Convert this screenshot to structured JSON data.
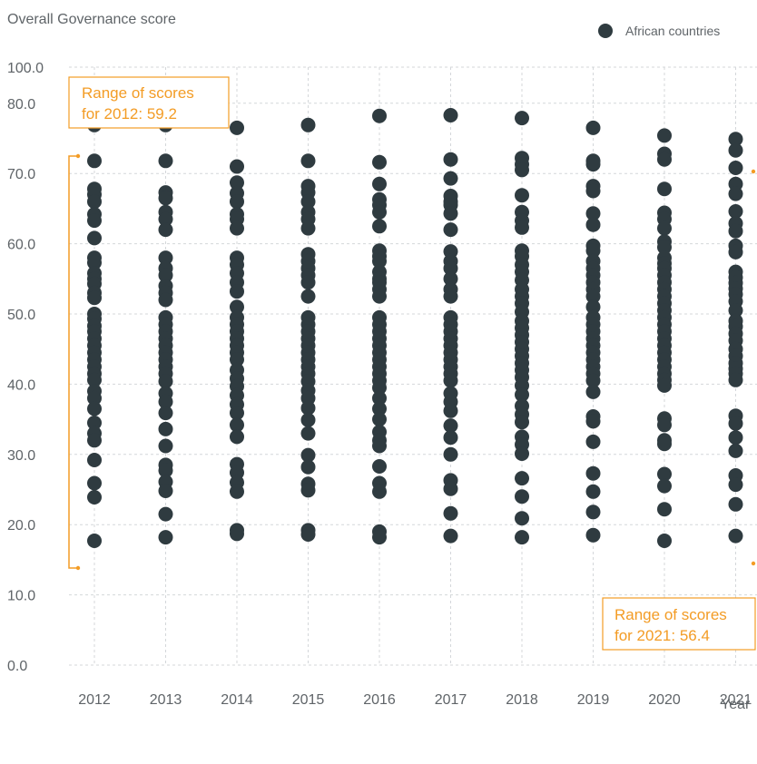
{
  "chart_data": {
    "type": "scatter",
    "ylabel": "Overall Governance score",
    "xlabel": "Year",
    "ylim": [
      0,
      100
    ],
    "y_ticks": [
      "0.0",
      "10.0",
      "20.0",
      "30.0",
      "40.0",
      "50.0",
      "60.0",
      "70.0",
      "80.0",
      "100.0"
    ],
    "y_axis_break": "between 80.0 and 100.0",
    "categories": [
      "2012",
      "2013",
      "2014",
      "2015",
      "2016",
      "2017",
      "2018",
      "2019",
      "2020",
      "2021"
    ],
    "grid": true,
    "legend": {
      "position": "top-right"
    },
    "series": [
      {
        "name": "African countries",
        "color": "#2f3b40",
        "points": [
          {
            "x": "2012",
            "y": [
              76.9,
              71.8,
              67.8,
              67.0,
              66.0,
              64.2,
              63.3,
              60.8,
              58.0,
              57.3,
              55.8,
              55.0,
              54.3,
              53.0,
              52.3,
              50.0,
              49.3,
              48.3,
              47.5,
              46.5,
              45.5,
              44.5,
              43.5,
              42.5,
              41.5,
              40.6,
              39.0,
              38.0,
              36.5,
              34.5,
              33.0,
              32.0,
              29.2,
              25.9,
              23.9,
              17.7
            ]
          },
          {
            "x": "2013",
            "y": [
              76.9,
              71.8,
              67.3,
              66.5,
              64.5,
              63.5,
              62.0,
              58.0,
              56.5,
              55.5,
              54.0,
              53.0,
              52.0,
              49.5,
              48.5,
              47.5,
              46.5,
              45.5,
              44.5,
              43.5,
              42.5,
              41.5,
              40.4,
              38.7,
              37.5,
              35.9,
              33.6,
              31.2,
              28.5,
              27.7,
              26.1,
              24.8,
              21.5,
              18.2
            ]
          },
          {
            "x": "2014",
            "y": [
              76.5,
              71.0,
              68.7,
              67.2,
              66.0,
              64.2,
              63.5,
              62.2,
              58.0,
              57.0,
              55.8,
              54.5,
              53.2,
              51.0,
              49.5,
              48.5,
              47.5,
              46.5,
              45.5,
              44.5,
              43.5,
              42.0,
              40.8,
              39.7,
              38.4,
              37.1,
              35.9,
              34.2,
              32.5,
              28.6,
              27.4,
              26.0,
              24.7,
              19.2,
              18.7
            ]
          },
          {
            "x": "2015",
            "y": [
              76.9,
              71.8,
              68.2,
              67.3,
              66.0,
              64.5,
              63.5,
              62.2,
              58.5,
              57.5,
              56.5,
              55.5,
              54.5,
              52.5,
              49.5,
              48.5,
              47.5,
              46.5,
              45.5,
              44.5,
              43.5,
              42.5,
              41.5,
              40.4,
              39.1,
              38.0,
              36.6,
              34.9,
              33.0,
              29.9,
              28.2,
              25.8,
              24.9,
              19.2,
              18.6
            ]
          },
          {
            "x": "2016",
            "y": [
              78.2,
              71.6,
              68.5,
              66.3,
              65.5,
              64.5,
              62.5,
              59.0,
              58.2,
              57.5,
              56.0,
              55.0,
              54.5,
              53.5,
              52.5,
              49.5,
              48.5,
              47.5,
              46.5,
              45.5,
              44.5,
              43.5,
              42.5,
              41.5,
              40.5,
              39.5,
              38.0,
              36.5,
              35.0,
              33.2,
              32.0,
              31.2,
              28.3,
              25.9,
              24.7,
              19.0,
              18.2
            ]
          },
          {
            "x": "2017",
            "y": [
              78.3,
              72.0,
              69.3,
              66.8,
              66.0,
              65.5,
              64.3,
              62.0,
              58.9,
              57.5,
              56.5,
              55.0,
              53.5,
              52.5,
              49.5,
              48.5,
              47.5,
              46.5,
              45.5,
              44.5,
              43.5,
              42.5,
              41.5,
              40.5,
              38.7,
              37.5,
              36.2,
              34.1,
              32.4,
              30.0,
              26.3,
              25.1,
              21.6,
              18.4
            ]
          },
          {
            "x": "2018",
            "y": [
              77.9,
              72.2,
              71.3,
              70.5,
              66.9,
              64.5,
              63.3,
              62.3,
              59.0,
              58.2,
              57.0,
              56.0,
              54.8,
              53.5,
              52.5,
              51.5,
              50.3,
              49.0,
              48.0,
              47.0,
              46.0,
              45.0,
              44.0,
              43.0,
              42.0,
              41.0,
              39.8,
              38.5,
              36.9,
              35.7,
              34.6,
              32.5,
              31.4,
              30.1,
              26.6,
              24.0,
              20.9,
              18.2
            ]
          },
          {
            "x": "2019",
            "y": [
              76.5,
              71.8,
              71.3,
              68.2,
              67.5,
              64.3,
              62.7,
              59.7,
              59.0,
              57.5,
              56.5,
              55.5,
              54.5,
              53.5,
              52.5,
              51.0,
              49.5,
              48.5,
              47.5,
              46.5,
              45.5,
              44.5,
              43.5,
              42.5,
              41.5,
              40.5,
              38.9,
              35.4,
              34.7,
              31.8,
              27.3,
              24.7,
              21.8,
              18.5
            ]
          },
          {
            "x": "2020",
            "y": [
              75.4,
              72.8,
              72.0,
              67.8,
              64.4,
              63.5,
              62.2,
              60.3,
              59.5,
              58.0,
              57.2,
              56.5,
              55.5,
              54.5,
              53.5,
              52.5,
              51.5,
              50.5,
              49.5,
              48.5,
              47.5,
              46.5,
              45.5,
              44.5,
              43.5,
              42.5,
              41.5,
              40.6,
              39.8,
              35.1,
              34.2,
              32.0,
              31.5,
              27.2,
              25.5,
              22.2,
              17.7
            ]
          },
          {
            "x": "2021",
            "y": [
              74.9,
              73.3,
              70.8,
              68.5,
              67.1,
              64.6,
              62.9,
              61.8,
              59.7,
              58.8,
              56.0,
              55.2,
              54.4,
              53.6,
              52.8,
              51.8,
              50.5,
              49.0,
              48.2,
              47.2,
              46.2,
              45.0,
              44.0,
              43.0,
              42.2,
              41.5,
              40.6,
              35.5,
              34.4,
              32.4,
              30.5,
              27.0,
              25.7,
              22.9,
              18.4
            ]
          }
        ]
      }
    ],
    "annotations": [
      {
        "text_lines": [
          "Range of scores",
          "for 2012: 59.2"
        ],
        "year": "2012",
        "range": [
          17.7,
          76.9
        ],
        "color": "#f39c25"
      },
      {
        "text_lines": [
          "Range of scores",
          "for 2021: 56.4"
        ],
        "year": "2021",
        "range": [
          18.4,
          74.9
        ],
        "color": "#f39c25"
      }
    ],
    "colors": {
      "dot": "#2f3b40",
      "annotation": "#f39c25",
      "grid": "#d4d7da",
      "text": "#5f6468",
      "break_mark": "#9aa0a4"
    }
  }
}
